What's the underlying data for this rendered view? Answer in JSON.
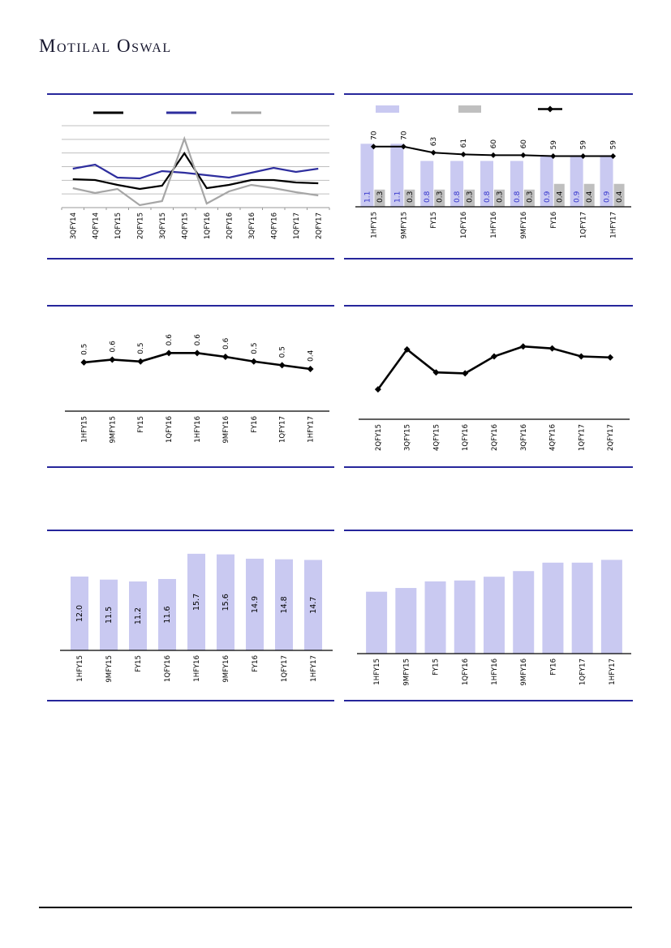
{
  "page": {
    "brand": "Motilal Oswal"
  },
  "chart_data": [
    {
      "id": "quarterly-multi-line",
      "type": "line",
      "categories": [
        "3QFY14",
        "4QFY14",
        "1QFY15",
        "2QFY15",
        "3QFY15",
        "4QFY15",
        "1QFY16",
        "2QFY16",
        "3QFY16",
        "4QFY16",
        "1QFY17",
        "2QFY17"
      ],
      "series": [
        {
          "name": "series-black",
          "color": "#000000",
          "values": [
            35,
            34,
            28,
            23,
            27,
            67,
            24,
            28,
            34,
            34,
            31,
            30
          ]
        },
        {
          "name": "series-navy",
          "color": "#2e2e9e",
          "values": [
            48,
            53,
            37,
            36,
            45,
            43,
            40,
            37,
            43,
            49,
            44,
            48
          ]
        },
        {
          "name": "series-gray",
          "color": "#a6a6a6",
          "values": [
            24,
            18,
            23,
            3,
            8,
            85,
            5,
            20,
            28,
            24,
            19,
            15
          ]
        }
      ],
      "ylim": [
        0,
        101
      ],
      "grid": true,
      "gridline_count": 6,
      "legend_position": "top",
      "legend_swatches": [
        "line-black",
        "line-navy",
        "line-gray"
      ],
      "note": "y-axis unlabeled; values estimated from plot"
    },
    {
      "id": "bars-with-line",
      "type": "bar",
      "categories": [
        "1HFY15",
        "9MFY15",
        "FY15",
        "1QFY16",
        "1HFY16",
        "9MFY16",
        "FY16",
        "1QFY17",
        "1HFY17"
      ],
      "series": [
        {
          "name": "bar-lavender",
          "color": "#c9c9f1",
          "label_color": "#3333cc",
          "values": [
            1.1,
            1.1,
            0.8,
            0.8,
            0.8,
            0.8,
            0.9,
            0.9,
            0.9
          ],
          "labels": [
            "1.1",
            "1.1",
            "0.8",
            "0.8",
            "0.8",
            "0.8",
            "0.9",
            "0.9",
            "0.9"
          ]
        },
        {
          "name": "bar-gray",
          "color": "#bfbfbf",
          "label_color": "#000000",
          "values": [
            0.3,
            0.3,
            0.3,
            0.3,
            0.3,
            0.3,
            0.4,
            0.4,
            0.4
          ],
          "labels": [
            "0.3",
            "0.3",
            "0.3",
            "0.3",
            "0.3",
            "0.3",
            "0.4",
            "0.4",
            "0.4"
          ]
        }
      ],
      "line_series": {
        "name": "line-black",
        "color": "#000000",
        "marker": "diamond",
        "values": [
          70,
          70,
          63,
          61,
          60,
          60,
          59,
          59,
          59
        ],
        "labels": [
          "70",
          "70",
          "63",
          "61",
          "60",
          "60",
          "59",
          "59",
          "59"
        ]
      },
      "ylim_primary": [
        0,
        1.5
      ],
      "ylim_secondary": [
        0,
        100
      ],
      "grid": false,
      "legend_position": "top",
      "legend_swatches": [
        "rect-lavender",
        "rect-gray",
        "line-diamond-black"
      ]
    },
    {
      "id": "labeled-line",
      "type": "line",
      "categories": [
        "1HFY15",
        "9MFY15",
        "FY15",
        "1QFY16",
        "1HFY16",
        "9MFY16",
        "FY16",
        "1QFY17",
        "1HFY17"
      ],
      "series": [
        {
          "name": "line-black",
          "color": "#000000",
          "marker": "diamond",
          "values": [
            0.52,
            0.55,
            0.53,
            0.62,
            0.62,
            0.58,
            0.53,
            0.49,
            0.45
          ],
          "labels": [
            "0.5",
            "0.6",
            "0.5",
            "0.6",
            "0.6",
            "0.6",
            "0.5",
            "0.5",
            "0.4"
          ]
        }
      ],
      "ylim": [
        0,
        0.9
      ],
      "grid": false
    },
    {
      "id": "trend-line",
      "type": "line",
      "categories": [
        "2QFY15",
        "3QFY15",
        "4QFY15",
        "1QFY16",
        "2QFY16",
        "3QFY16",
        "4QFY16",
        "1QFY17",
        "2QFY17"
      ],
      "series": [
        {
          "name": "line-black",
          "color": "#000000",
          "marker": "diamond",
          "values": [
            30,
            70,
            47,
            46,
            63,
            73,
            71,
            63,
            62
          ]
        }
      ],
      "ylim": [
        0,
        100
      ],
      "grid": false,
      "note": "no data labels shown; values estimated from plot"
    },
    {
      "id": "labeled-bars",
      "type": "bar",
      "categories": [
        "1HFY15",
        "9MFY15",
        "FY15",
        "1QFY16",
        "1HFY16",
        "9MFY16",
        "FY16",
        "1QFY17",
        "1HFY17"
      ],
      "values": [
        12.0,
        11.5,
        11.2,
        11.6,
        15.7,
        15.6,
        14.9,
        14.8,
        14.7
      ],
      "labels": [
        "12.0",
        "11.5",
        "11.2",
        "11.6",
        "15.7",
        "15.6",
        "14.9",
        "14.8",
        "14.7"
      ],
      "bar_color": "#c9c9f1",
      "label_color": "#000000",
      "ylim": [
        0,
        17
      ],
      "grid": false
    },
    {
      "id": "rising-bars",
      "type": "bar",
      "categories": [
        "1HFY15",
        "9MFY15",
        "FY15",
        "1QFY16",
        "1HFY16",
        "9MFY16",
        "FY16",
        "1QFY17",
        "1HFY17"
      ],
      "values": [
        66,
        70,
        77,
        78,
        82,
        88,
        97,
        97,
        100
      ],
      "bar_color": "#c9c9f1",
      "ylim": [
        0,
        115
      ],
      "grid": false,
      "note": "no data labels shown; values estimated from plot"
    }
  ],
  "colors": {
    "panel_border": "#26269b",
    "gridline": "#bfbfbf",
    "axis_light": "#9a9a9a",
    "axis_dark": "#000000",
    "lavender": "#c9c9f1",
    "gray_bar": "#bfbfbf",
    "navy_line": "#2e2e9e",
    "gray_line": "#a6a6a6",
    "blue_label": "#3333cc"
  }
}
